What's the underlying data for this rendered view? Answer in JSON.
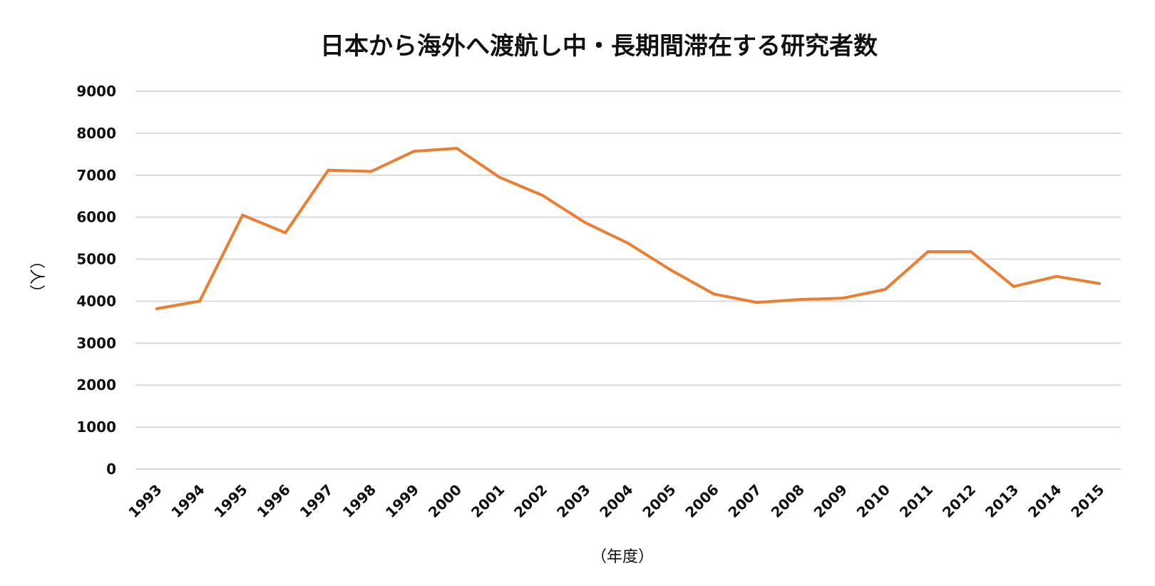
{
  "chart_data": {
    "type": "line",
    "title": "日本から海外へ渡航し中・長期間滞在する研究者数",
    "xlabel": "（年度）",
    "ylabel": "（人）",
    "ylim": [
      0,
      9000
    ],
    "yticks": [
      "0",
      "1000",
      "2000",
      "3000",
      "4000",
      "5000",
      "6000",
      "7000",
      "8000",
      "9000"
    ],
    "grid": true,
    "categories": [
      "1993",
      "1994",
      "1995",
      "1996",
      "1997",
      "1998",
      "1999",
      "2000",
      "2001",
      "2002",
      "2003",
      "2004",
      "2005",
      "2006",
      "2007",
      "2008",
      "2009",
      "2010",
      "2011",
      "2012",
      "2013",
      "2014",
      "2015"
    ],
    "series": [
      {
        "color": "#ed7d31",
        "values": [
          3820,
          4000,
          6050,
          5630,
          7120,
          7090,
          7570,
          7640,
          6950,
          6520,
          5870,
          5380,
          4740,
          4170,
          3970,
          4040,
          4070,
          4280,
          5180,
          5180,
          4350,
          4590,
          4420
        ]
      }
    ]
  }
}
